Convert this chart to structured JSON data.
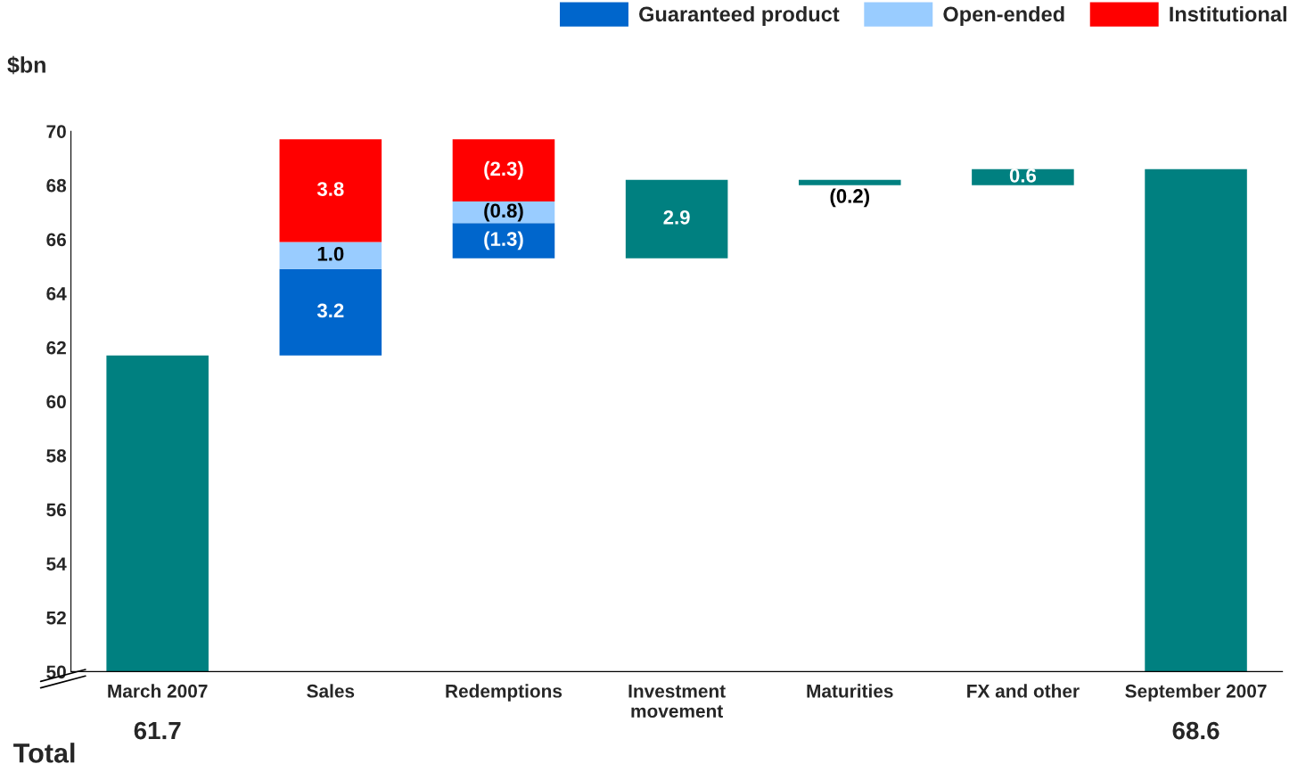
{
  "chart_data": {
    "type": "bar",
    "ylabel": "$bn",
    "legend": "top right",
    "grid": false,
    "categories": [
      "March 2007",
      "Sales",
      "Redemptions",
      "Investment\nmovement",
      "Maturities",
      "FX and other",
      "September 2007"
    ],
    "ylim": [
      50,
      70
    ],
    "yticks": [
      50,
      52,
      54,
      56,
      58,
      60,
      62,
      64,
      66,
      68,
      70
    ],
    "series": [
      {
        "color": "#008080",
        "values": [
          61.7,
          null,
          null,
          2.9,
          -0.2,
          0.6,
          68.6
        ],
        "base": [
          null,
          null,
          null,
          65.3,
          68.2,
          68.0,
          null
        ],
        "value_labels": [
          "61.7",
          null,
          null,
          "2.9",
          "(0.2)",
          "0.6",
          "68.6"
        ]
      },
      {
        "name": "Guaranteed product",
        "color": "#0066cc",
        "values": [
          null,
          3.2,
          -1.3,
          null,
          null,
          null,
          null
        ],
        "base": [
          null,
          61.7,
          66.6,
          null,
          null,
          null,
          null
        ],
        "value_labels": [
          null,
          "3.2",
          "(1.3)",
          null,
          null,
          null,
          null
        ]
      },
      {
        "name": "Open-ended",
        "color": "#99ccff",
        "values": [
          null,
          1.0,
          -0.8,
          null,
          null,
          null,
          null
        ],
        "base": [
          null,
          64.9,
          67.4,
          null,
          null,
          null,
          null
        ],
        "value_labels": [
          null,
          "1.0",
          "(0.8)",
          null,
          null,
          null,
          null
        ]
      },
      {
        "name": "Institutional",
        "color": "#ff0000",
        "values": [
          null,
          3.8,
          -2.3,
          null,
          null,
          null,
          null
        ],
        "base": [
          null,
          65.9,
          69.7,
          null,
          null,
          null,
          null
        ],
        "value_labels": [
          null,
          "3.8",
          "(2.3)",
          null,
          null,
          null,
          null
        ]
      }
    ],
    "annotations": [
      "Total"
    ]
  }
}
